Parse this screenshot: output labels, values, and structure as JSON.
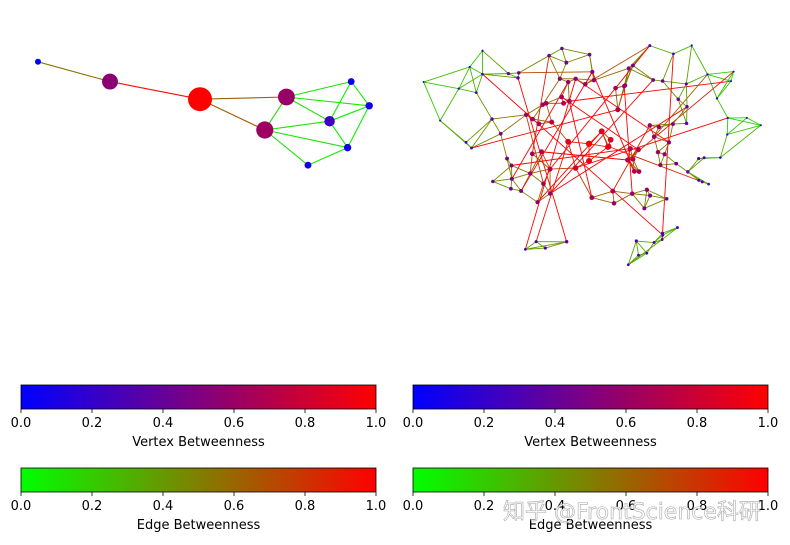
{
  "watermark": "知乎 @FrontScience科研",
  "colors": {
    "vertex_low": "#0000ff",
    "vertex_high": "#ff0000",
    "edge_low": "#00ff00",
    "edge_high": "#ff0000"
  },
  "chart_data": [
    {
      "type": "network",
      "panel": "small-graph",
      "nodes": [
        {
          "id": 0,
          "x": 0.05,
          "y": 0.81,
          "betweenness": 0.0
        },
        {
          "id": 1,
          "x": 0.25,
          "y": 0.72,
          "betweenness": 0.55
        },
        {
          "id": 2,
          "x": 0.5,
          "y": 0.64,
          "betweenness": 1.0
        },
        {
          "id": 3,
          "x": 0.74,
          "y": 0.65,
          "betweenness": 0.6
        },
        {
          "id": 4,
          "x": 0.68,
          "y": 0.5,
          "betweenness": 0.62
        },
        {
          "id": 5,
          "x": 0.92,
          "y": 0.72,
          "betweenness": 0.05
        },
        {
          "id": 6,
          "x": 0.97,
          "y": 0.61,
          "betweenness": 0.08
        },
        {
          "id": 7,
          "x": 0.86,
          "y": 0.54,
          "betweenness": 0.25
        },
        {
          "id": 8,
          "x": 0.91,
          "y": 0.42,
          "betweenness": 0.08
        },
        {
          "id": 9,
          "x": 0.8,
          "y": 0.34,
          "betweenness": 0.05
        }
      ],
      "edges": [
        {
          "s": 0,
          "t": 1,
          "betweenness": 0.55
        },
        {
          "s": 1,
          "t": 2,
          "betweenness": 0.95
        },
        {
          "s": 2,
          "t": 3,
          "betweenness": 0.62
        },
        {
          "s": 2,
          "t": 4,
          "betweenness": 0.65
        },
        {
          "s": 3,
          "t": 4,
          "betweenness": 0.15
        },
        {
          "s": 3,
          "t": 5,
          "betweenness": 0.1
        },
        {
          "s": 3,
          "t": 6,
          "betweenness": 0.1
        },
        {
          "s": 3,
          "t": 7,
          "betweenness": 0.1
        },
        {
          "s": 4,
          "t": 7,
          "betweenness": 0.1
        },
        {
          "s": 4,
          "t": 8,
          "betweenness": 0.1
        },
        {
          "s": 4,
          "t": 9,
          "betweenness": 0.1
        },
        {
          "s": 5,
          "t": 6,
          "betweenness": 0.05
        },
        {
          "s": 5,
          "t": 7,
          "betweenness": 0.05
        },
        {
          "s": 6,
          "t": 7,
          "betweenness": 0.05
        },
        {
          "s": 6,
          "t": 8,
          "betweenness": 0.05
        },
        {
          "s": 7,
          "t": 8,
          "betweenness": 0.05
        },
        {
          "s": 8,
          "t": 9,
          "betweenness": 0.05
        }
      ]
    },
    {
      "type": "network",
      "panel": "large-graph",
      "node_count": 120,
      "seed": 7,
      "neighbors_per_node": 3
    },
    {
      "type": "colorbar",
      "label": "Vertex Betweenness",
      "range": [
        0.0,
        1.0
      ],
      "ticks": [
        "0.0",
        "0.2",
        "0.4",
        "0.6",
        "0.8",
        "1.0"
      ],
      "from_color": "#0000ff",
      "to_color": "#ff0000"
    },
    {
      "type": "colorbar",
      "label": "Vertex Betweenness",
      "range": [
        0.0,
        1.0
      ],
      "ticks": [
        "0.0",
        "0.2",
        "0.4",
        "0.6",
        "0.8",
        "1.0"
      ],
      "from_color": "#0000ff",
      "to_color": "#ff0000"
    },
    {
      "type": "colorbar",
      "label": "Edge Betweenness",
      "range": [
        0.0,
        1.0
      ],
      "ticks": [
        "0.0",
        "0.2",
        "0.4",
        "0.6",
        "0.8",
        "1.0"
      ],
      "from_color": "#00ff00",
      "to_color": "#ff0000"
    },
    {
      "type": "colorbar",
      "label": "Edge Betweenness",
      "range": [
        0.0,
        1.0
      ],
      "ticks": [
        "0.0",
        "0.2",
        "0.4",
        "0.6",
        "0.8",
        "1.0"
      ],
      "from_color": "#00ff00",
      "to_color": "#ff0000"
    }
  ]
}
